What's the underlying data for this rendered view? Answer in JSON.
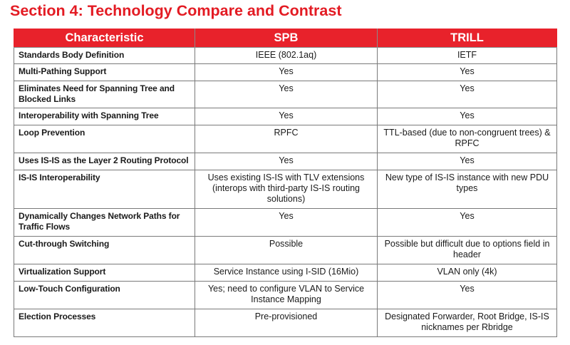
{
  "title": "Section 4: Technology Compare and Contrast",
  "table": {
    "headers": [
      "Characteristic",
      "SPB",
      "TRILL"
    ],
    "rows": [
      {
        "characteristic": "Standards Body Definition",
        "spb": "IEEE (802.1aq)",
        "trill": "IETF"
      },
      {
        "characteristic": "Multi-Pathing Support",
        "spb": "Yes",
        "trill": "Yes"
      },
      {
        "characteristic": "Eliminates Need for Spanning Tree and Blocked Links",
        "spb": "Yes",
        "trill": "Yes"
      },
      {
        "characteristic": "Interoperability with Spanning Tree",
        "spb": "Yes",
        "trill": "Yes"
      },
      {
        "characteristic": "Loop Prevention",
        "spb": "RPFC",
        "trill": "TTL-based (due to non-congruent trees) & RPFC"
      },
      {
        "characteristic": "Uses IS-IS as the Layer 2 Routing Protocol",
        "spb": "Yes",
        "trill": "Yes"
      },
      {
        "characteristic": "IS-IS Interoperability",
        "spb": "Uses existing IS-IS with TLV extensions (interops with third-party IS-IS routing solutions)",
        "trill": "New type of IS-IS instance with new PDU types"
      },
      {
        "characteristic": "Dynamically Changes Network Paths for Traffic Flows",
        "spb": "Yes",
        "trill": "Yes"
      },
      {
        "characteristic": "Cut-through Switching",
        "spb": "Possible",
        "trill": "Possible but difficult due to options field in header"
      },
      {
        "characteristic": "Virtualization Support",
        "spb": "Service Instance using I-SID (16Mio)",
        "trill": "VLAN only (4k)"
      },
      {
        "characteristic": "Low-Touch Configuration",
        "spb": "Yes; need to configure VLAN to Service Instance Mapping",
        "trill": "Yes"
      },
      {
        "characteristic": "Election Processes",
        "spb": "Pre-provisioned",
        "trill": "Designated Forwarder, Root Bridge, IS-IS nicknames per Rbridge"
      }
    ]
  }
}
